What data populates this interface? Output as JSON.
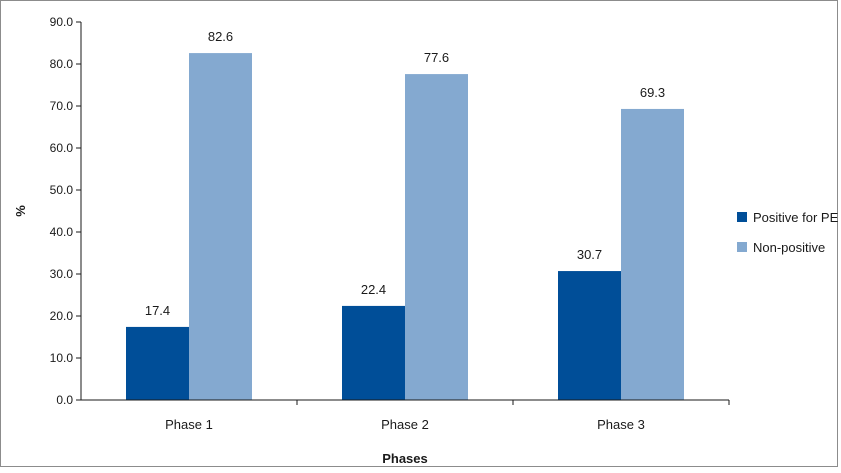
{
  "chart_data": {
    "type": "bar",
    "title": "",
    "xlabel": "Phases",
    "ylabel": "%",
    "categories": [
      "Phase 1",
      "Phase 2",
      "Phase 3"
    ],
    "series": [
      {
        "name": "Positive for PE",
        "values": [
          17.4,
          22.4,
          30.7
        ],
        "color": "#004e98"
      },
      {
        "name": "Non-positive",
        "values": [
          82.6,
          77.6,
          69.3
        ],
        "color": "#84a9d0"
      }
    ],
    "ylim": [
      0,
      90
    ],
    "yticks": [
      "0.0",
      "10.0",
      "20.0",
      "30.0",
      "40.0",
      "50.0",
      "60.0",
      "70.0",
      "80.0",
      "90.0"
    ],
    "data_labels": [
      [
        "17.4",
        "22.4",
        "30.7"
      ],
      [
        "82.6",
        "77.6",
        "69.3"
      ]
    ],
    "grid": false,
    "legend_position": "right"
  }
}
